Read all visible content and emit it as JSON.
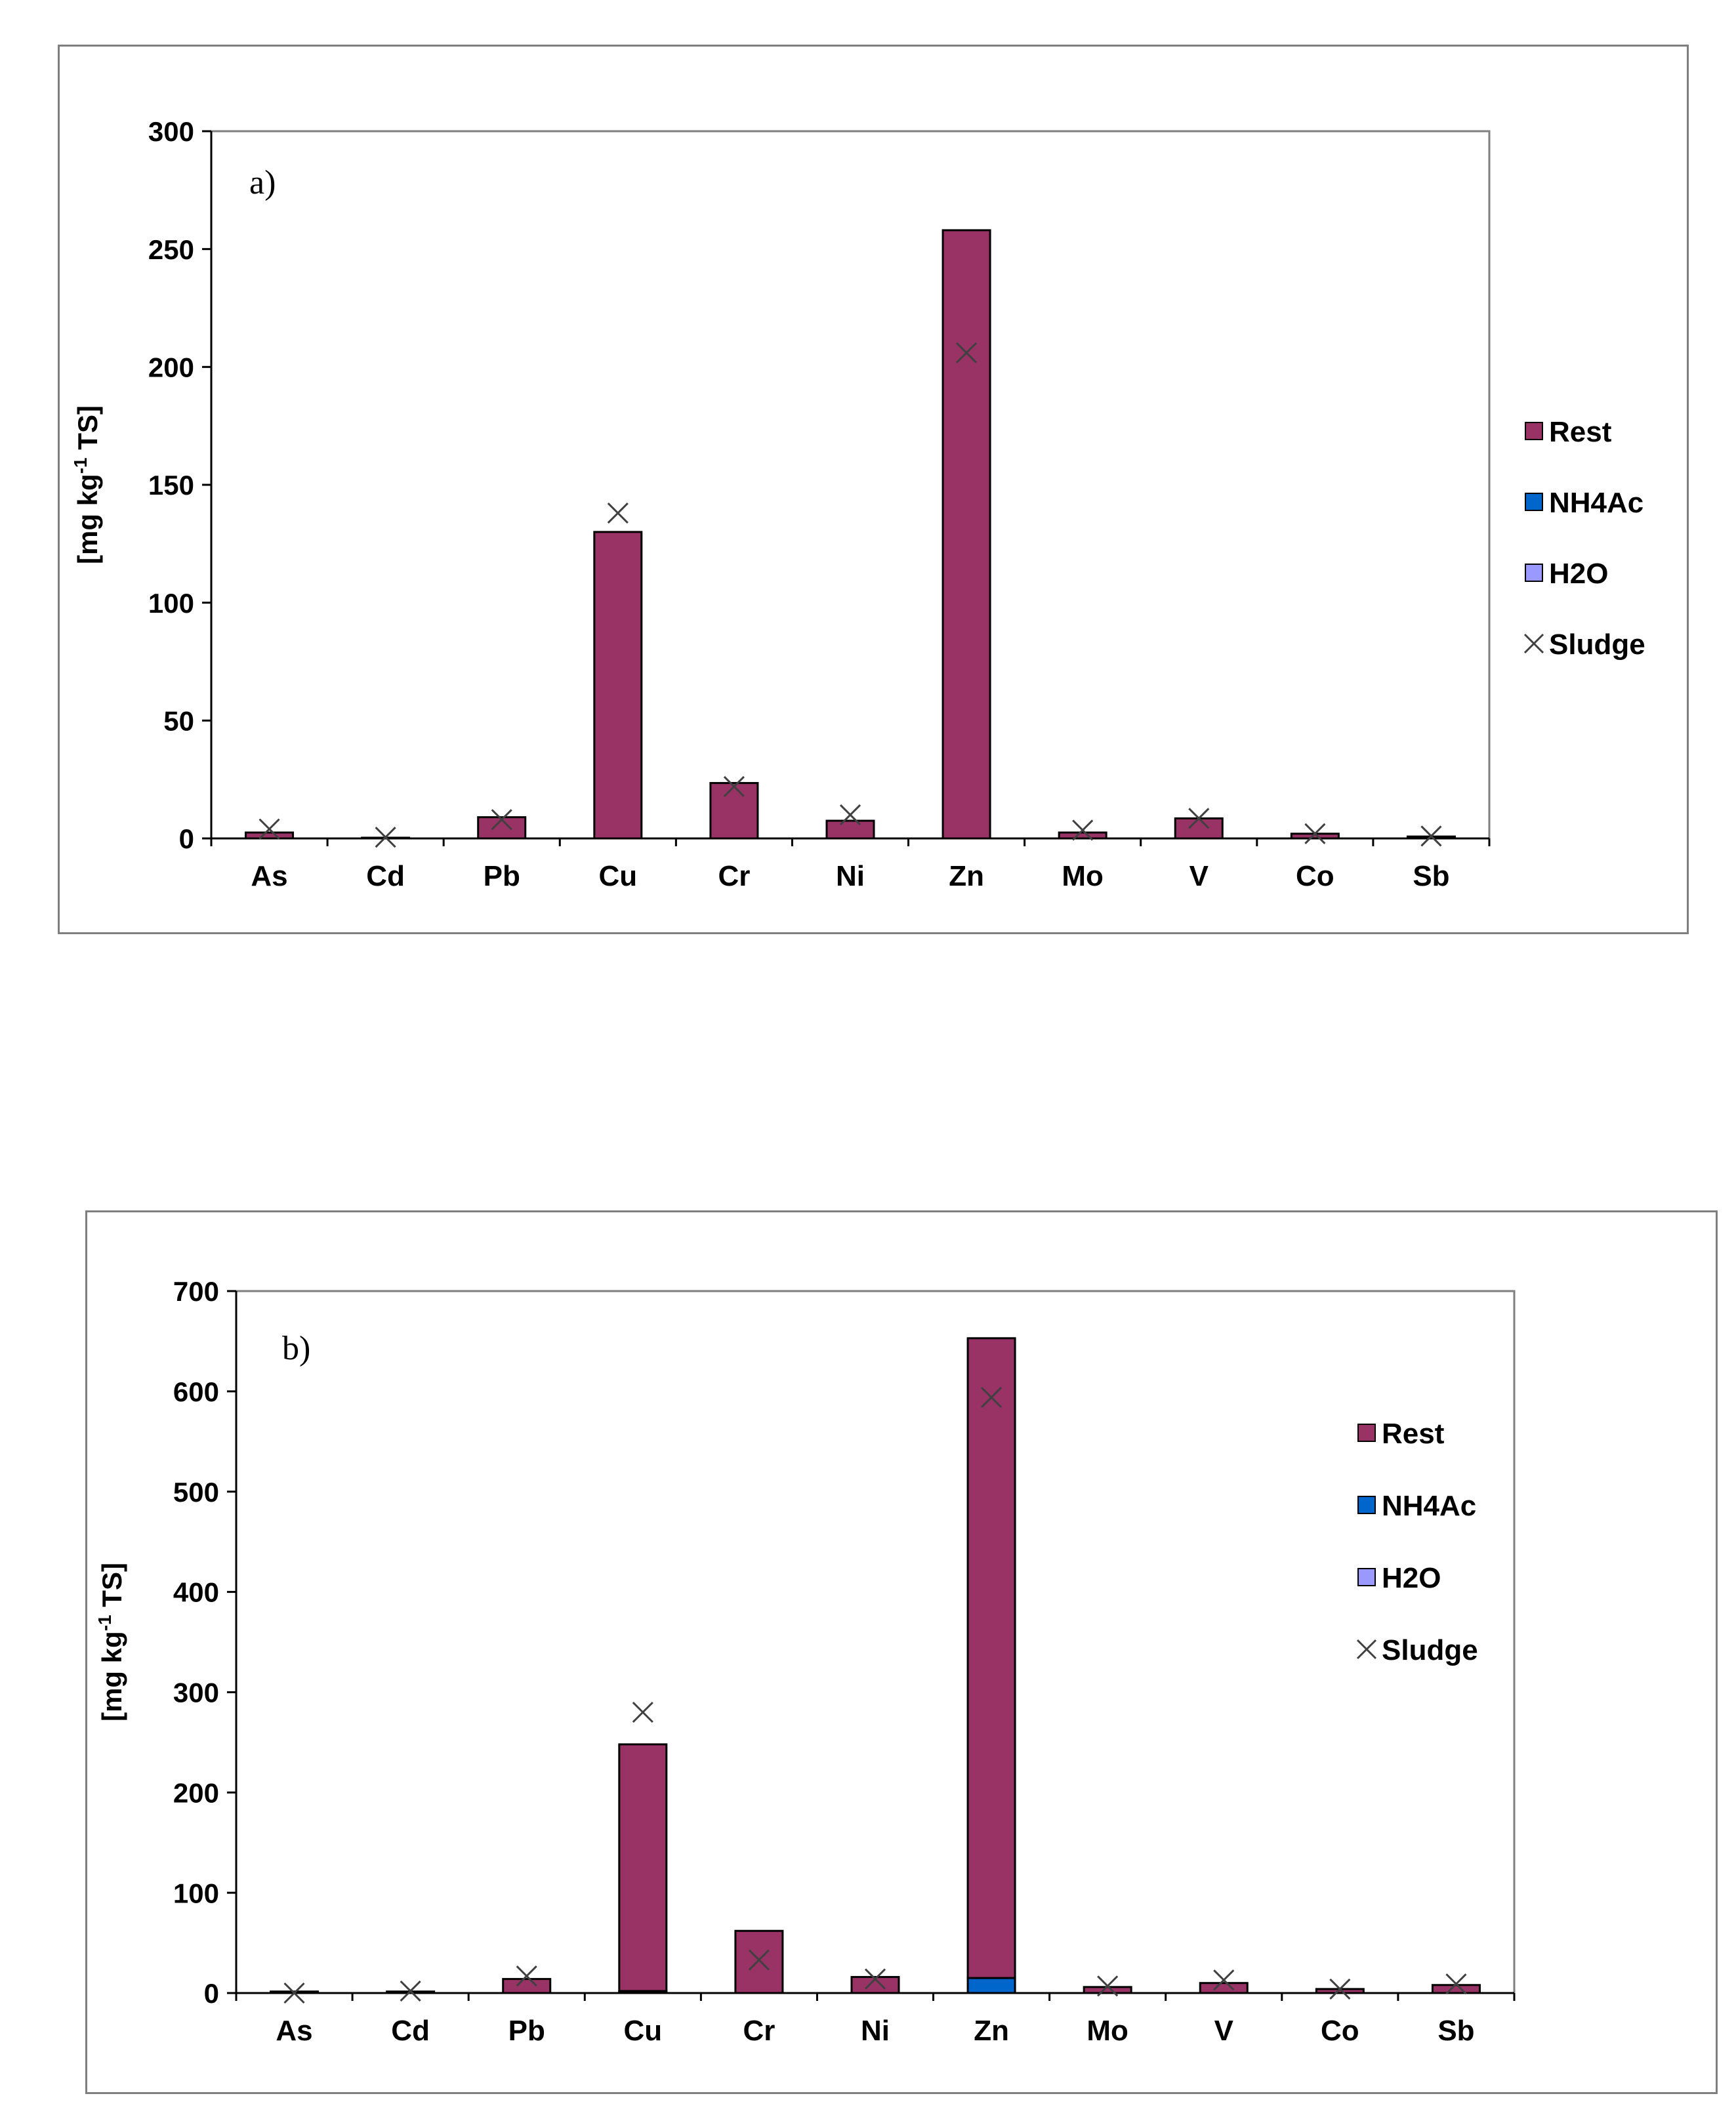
{
  "chart_data": [
    {
      "type": "bar",
      "stacked": true,
      "panel_label": "a)",
      "ylabel": "[mg kg-1 TS]",
      "ylabel_parts": {
        "pre": "[mg kg",
        "sup": "-1",
        "post": " TS]"
      },
      "ylim": [
        0,
        300
      ],
      "yticks": [
        "0",
        "50",
        "100",
        "150",
        "200",
        "250",
        "300"
      ],
      "ytick_values": [
        0,
        50,
        100,
        150,
        200,
        250,
        300
      ],
      "categories": [
        "As",
        "Cd",
        "Pb",
        "Cu",
        "Cr",
        "Ni",
        "Zn",
        "Mo",
        "V",
        "Co",
        "Sb"
      ],
      "series": [
        {
          "name": "H2O",
          "kind": "bar",
          "color": "#9999ff",
          "values": [
            0,
            0,
            0,
            0,
            0,
            0,
            0,
            0,
            0,
            0,
            0
          ]
        },
        {
          "name": "NH4Ac",
          "kind": "bar",
          "color": "#0066cc",
          "values": [
            0,
            0,
            0,
            0,
            0,
            0,
            0,
            0,
            0,
            0,
            0
          ]
        },
        {
          "name": "Rest",
          "kind": "bar",
          "color": "#993366",
          "values": [
            2.5,
            0.3,
            9,
            130,
            23.5,
            7.5,
            258,
            2.5,
            8.5,
            2,
            0.8
          ]
        },
        {
          "name": "Sludge",
          "kind": "marker",
          "marker": "x",
          "color": "#404040",
          "values": [
            4,
            0.5,
            8,
            138,
            22,
            10,
            206,
            3.5,
            8.5,
            2,
            1
          ]
        }
      ],
      "legend": {
        "placement": "right",
        "entries": [
          "Rest",
          "NH4Ac",
          "H2O",
          "Sludge"
        ]
      },
      "grid": false
    },
    {
      "type": "bar",
      "stacked": true,
      "panel_label": "b)",
      "ylabel": "[mg kg-1 TS]",
      "ylabel_parts": {
        "pre": "[mg kg",
        "sup": "-1",
        "post": " TS]"
      },
      "ylim": [
        0,
        700
      ],
      "yticks": [
        "0",
        "100",
        "200",
        "300",
        "400",
        "500",
        "600",
        "700"
      ],
      "ytick_values": [
        0,
        100,
        200,
        300,
        400,
        500,
        600,
        700
      ],
      "categories": [
        "As",
        "Cd",
        "Pb",
        "Cu",
        "Cr",
        "Ni",
        "Zn",
        "Mo",
        "V",
        "Co",
        "Sb"
      ],
      "series": [
        {
          "name": "H2O",
          "kind": "bar",
          "color": "#9999ff",
          "values": [
            0,
            0,
            0,
            0,
            0,
            0,
            0,
            0,
            0,
            0,
            0
          ]
        },
        {
          "name": "NH4Ac",
          "kind": "bar",
          "color": "#0066cc",
          "values": [
            0,
            0,
            0,
            2,
            0,
            0,
            15,
            0,
            0,
            0,
            0
          ]
        },
        {
          "name": "Rest",
          "kind": "bar",
          "color": "#993366",
          "values": [
            1.5,
            1.5,
            14,
            246,
            62,
            16,
            638,
            6,
            10,
            4,
            8
          ]
        },
        {
          "name": "Sludge",
          "kind": "marker",
          "marker": "x",
          "color": "#404040",
          "values": [
            0,
            2,
            17,
            280,
            33,
            14,
            594,
            7,
            13,
            4,
            9
          ]
        }
      ],
      "legend": {
        "placement": "right",
        "entries": [
          "Rest",
          "NH4Ac",
          "H2O",
          "Sludge"
        ]
      },
      "grid": false
    }
  ]
}
